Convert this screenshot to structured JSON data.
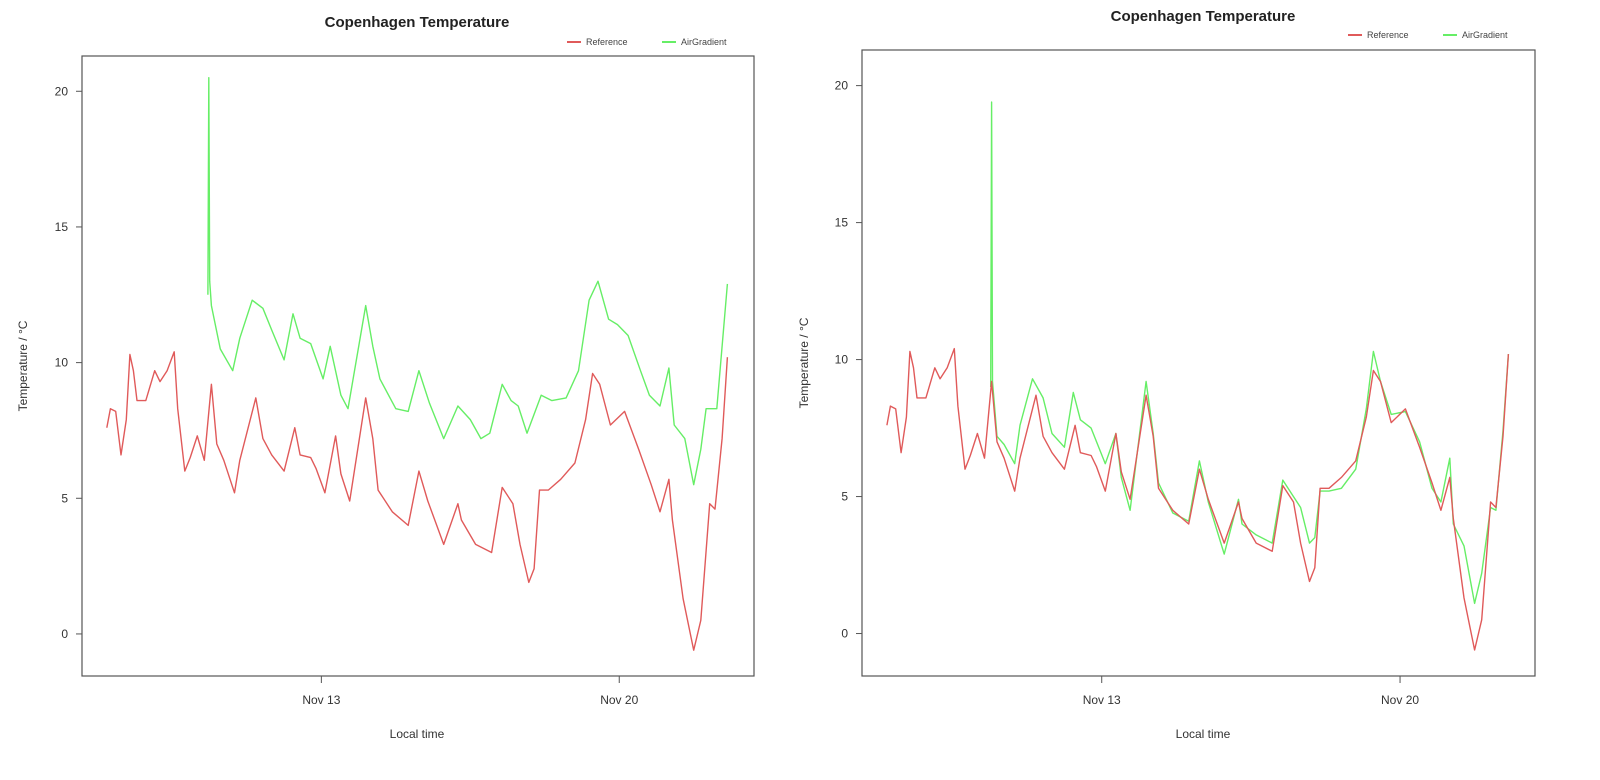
{
  "chart_data": [
    {
      "type": "line",
      "title": "Copenhagen Temperature",
      "xlabel": "Local time",
      "ylabel": "Temperature / °C",
      "xlim": [
        "Nov 7 09:00",
        "Nov 23 04:00"
      ],
      "ylim": [
        -1.55,
        21.3
      ],
      "xticks": [
        {
          "label": "Nov 13",
          "x": "Nov 13 00:00"
        },
        {
          "label": "Nov 20",
          "x": "Nov 20 00:00"
        }
      ],
      "yticks": [
        0,
        5,
        10,
        15,
        20
      ],
      "grid": false,
      "legend": "top-right",
      "series": [
        {
          "name": "Reference",
          "color": "#e05a5a",
          "points": [
            [
              "Nov 7 23:00",
              7.6
            ],
            [
              "Nov 8 01:00",
              8.3
            ],
            [
              "Nov 8 04:00",
              8.2
            ],
            [
              "Nov 8 07:00",
              6.6
            ],
            [
              "Nov 8 10:00",
              7.9
            ],
            [
              "Nov 8 12:00",
              10.3
            ],
            [
              "Nov 8 14:00",
              9.7
            ],
            [
              "Nov 8 16:00",
              8.6
            ],
            [
              "Nov 8 21:00",
              8.6
            ],
            [
              "Nov 9 02:00",
              9.7
            ],
            [
              "Nov 9 05:00",
              9.3
            ],
            [
              "Nov 9 09:00",
              9.7
            ],
            [
              "Nov 9 13:00",
              10.4
            ],
            [
              "Nov 9 15:00",
              8.3
            ],
            [
              "Nov 9 19:00",
              6.0
            ],
            [
              "Nov 9 22:00",
              6.5
            ],
            [
              "Nov 10 02:00",
              7.3
            ],
            [
              "Nov 10 06:00",
              6.4
            ],
            [
              "Nov 10 10:00",
              9.2
            ],
            [
              "Nov 10 13:00",
              7.0
            ],
            [
              "Nov 10 17:00",
              6.4
            ],
            [
              "Nov 10 23:00",
              5.2
            ],
            [
              "Nov 11 02:00",
              6.4
            ],
            [
              "Nov 11 11:00",
              8.7
            ],
            [
              "Nov 11 15:00",
              7.2
            ],
            [
              "Nov 11 20:00",
              6.6
            ],
            [
              "Nov 12 03:00",
              6.0
            ],
            [
              "Nov 12 09:00",
              7.6
            ],
            [
              "Nov 12 12:00",
              6.6
            ],
            [
              "Nov 12 18:00",
              6.5
            ],
            [
              "Nov 12 21:00",
              6.1
            ],
            [
              "Nov 13 02:00",
              5.2
            ],
            [
              "Nov 13 08:00",
              7.3
            ],
            [
              "Nov 13 11:00",
              5.9
            ],
            [
              "Nov 13 16:00",
              4.9
            ],
            [
              "Nov 14 01:00",
              8.7
            ],
            [
              "Nov 14 05:00",
              7.2
            ],
            [
              "Nov 14 08:00",
              5.3
            ],
            [
              "Nov 14 16:00",
              4.5
            ],
            [
              "Nov 15 01:00",
              4.0
            ],
            [
              "Nov 15 07:00",
              6.0
            ],
            [
              "Nov 15 12:00",
              4.9
            ],
            [
              "Nov 15 21:00",
              3.3
            ],
            [
              "Nov 16 05:00",
              4.8
            ],
            [
              "Nov 16 07:00",
              4.2
            ],
            [
              "Nov 16 15:00",
              3.3
            ],
            [
              "Nov 17 00:00",
              3.0
            ],
            [
              "Nov 17 06:00",
              5.4
            ],
            [
              "Nov 17 12:00",
              4.8
            ],
            [
              "Nov 17 16:00",
              3.3
            ],
            [
              "Nov 17 21:00",
              1.9
            ],
            [
              "Nov 18 00:00",
              2.4
            ],
            [
              "Nov 18 03:00",
              5.3
            ],
            [
              "Nov 18 08:00",
              5.3
            ],
            [
              "Nov 18 15:00",
              5.7
            ],
            [
              "Nov 18 23:00",
              6.3
            ],
            [
              "Nov 19 05:00",
              7.9
            ],
            [
              "Nov 19 09:00",
              9.6
            ],
            [
              "Nov 19 13:00",
              9.2
            ],
            [
              "Nov 19 19:00",
              7.7
            ],
            [
              "Nov 20 03:00",
              8.2
            ],
            [
              "Nov 20 11:00",
              6.8
            ],
            [
              "Nov 20 18:00",
              5.5
            ],
            [
              "Nov 20 23:00",
              4.5
            ],
            [
              "Nov 21 04:00",
              5.7
            ],
            [
              "Nov 21 06:00",
              4.2
            ],
            [
              "Nov 21 12:00",
              1.3
            ],
            [
              "Nov 21 18:00",
              -0.6
            ],
            [
              "Nov 21 22:00",
              0.5
            ],
            [
              "Nov 22 03:00",
              4.8
            ],
            [
              "Nov 22 06:00",
              4.6
            ],
            [
              "Nov 22 10:00",
              7.2
            ],
            [
              "Nov 22 13:00",
              10.2
            ]
          ]
        },
        {
          "name": "AirGradient",
          "color": "#66ee66",
          "points": [
            [
              "Nov 10 08:00",
              12.5
            ],
            [
              "Nov 10 08:30",
              20.5
            ],
            [
              "Nov 10 09:00",
              13.0
            ],
            [
              "Nov 10 10:00",
              12.1
            ],
            [
              "Nov 10 15:00",
              10.5
            ],
            [
              "Nov 10 22:00",
              9.7
            ],
            [
              "Nov 11 02:00",
              10.9
            ],
            [
              "Nov 11 09:00",
              12.3
            ],
            [
              "Nov 11 15:00",
              12.0
            ],
            [
              "Nov 11 20:00",
              11.2
            ],
            [
              "Nov 12 03:00",
              10.1
            ],
            [
              "Nov 12 08:00",
              11.8
            ],
            [
              "Nov 12 12:00",
              10.9
            ],
            [
              "Nov 12 18:00",
              10.7
            ],
            [
              "Nov 13 01:00",
              9.4
            ],
            [
              "Nov 13 05:00",
              10.6
            ],
            [
              "Nov 13 11:00",
              8.8
            ],
            [
              "Nov 13 15:00",
              8.3
            ],
            [
              "Nov 14 01:00",
              12.1
            ],
            [
              "Nov 14 05:00",
              10.6
            ],
            [
              "Nov 14 09:00",
              9.4
            ],
            [
              "Nov 14 18:00",
              8.3
            ],
            [
              "Nov 15 01:00",
              8.2
            ],
            [
              "Nov 15 07:00",
              9.7
            ],
            [
              "Nov 15 13:00",
              8.5
            ],
            [
              "Nov 15 21:00",
              7.2
            ],
            [
              "Nov 16 05:00",
              8.4
            ],
            [
              "Nov 16 12:00",
              7.9
            ],
            [
              "Nov 16 18:00",
              7.2
            ],
            [
              "Nov 16 23:00",
              7.4
            ],
            [
              "Nov 17 06:00",
              9.2
            ],
            [
              "Nov 17 11:00",
              8.6
            ],
            [
              "Nov 17 15:00",
              8.4
            ],
            [
              "Nov 17 20:00",
              7.4
            ],
            [
              "Nov 18 04:00",
              8.8
            ],
            [
              "Nov 18 10:00",
              8.6
            ],
            [
              "Nov 18 18:00",
              8.7
            ],
            [
              "Nov 19 01:00",
              9.7
            ],
            [
              "Nov 19 07:00",
              12.3
            ],
            [
              "Nov 19 12:00",
              13.0
            ],
            [
              "Nov 19 18:00",
              11.6
            ],
            [
              "Nov 19 23:00",
              11.4
            ],
            [
              "Nov 20 05:00",
              11.0
            ],
            [
              "Nov 20 12:00",
              9.7
            ],
            [
              "Nov 20 17:00",
              8.8
            ],
            [
              "Nov 20 23:00",
              8.4
            ],
            [
              "Nov 21 04:00",
              9.8
            ],
            [
              "Nov 21 07:00",
              7.7
            ],
            [
              "Nov 21 13:00",
              7.2
            ],
            [
              "Nov 21 18:00",
              5.5
            ],
            [
              "Nov 21 22:00",
              6.8
            ],
            [
              "Nov 22 01:00",
              8.3
            ],
            [
              "Nov 22 07:00",
              8.3
            ],
            [
              "Nov 22 13:00",
              12.9
            ]
          ]
        }
      ]
    },
    {
      "type": "line",
      "title": "Copenhagen Temperature",
      "xlabel": "Local time",
      "ylabel": "Temperature / °C",
      "xlim": [
        "Nov 7 09:00",
        "Nov 23 04:00"
      ],
      "ylim": [
        -1.55,
        21.3
      ],
      "xticks": [
        {
          "label": "Nov 13",
          "x": "Nov 13 00:00"
        },
        {
          "label": "Nov 20",
          "x": "Nov 20 00:00"
        }
      ],
      "yticks": [
        0,
        5,
        10,
        15,
        20
      ],
      "grid": false,
      "legend": "top-right",
      "series": [
        {
          "name": "Reference",
          "color": "#e05a5a",
          "points": "same-as-left"
        },
        {
          "name": "AirGradient",
          "color": "#66ee66",
          "points": [
            [
              "Nov 10 09:30",
              9.0
            ],
            [
              "Nov 10 10:00",
              19.4
            ],
            [
              "Nov 10 10:30",
              9.2
            ],
            [
              "Nov 10 13:00",
              7.2
            ],
            [
              "Nov 10 17:00",
              6.9
            ],
            [
              "Nov 10 23:00",
              6.2
            ],
            [
              "Nov 11 02:00",
              7.6
            ],
            [
              "Nov 11 09:00",
              9.3
            ],
            [
              "Nov 11 15:00",
              8.6
            ],
            [
              "Nov 11 20:00",
              7.3
            ],
            [
              "Nov 12 03:00",
              6.8
            ],
            [
              "Nov 12 08:00",
              8.8
            ],
            [
              "Nov 12 12:00",
              7.8
            ],
            [
              "Nov 12 18:00",
              7.5
            ],
            [
              "Nov 13 02:00",
              6.2
            ],
            [
              "Nov 13 08:00",
              7.3
            ],
            [
              "Nov 13 11:00",
              5.7
            ],
            [
              "Nov 13 16:00",
              4.5
            ],
            [
              "Nov 14 01:00",
              9.2
            ],
            [
              "Nov 14 05:00",
              7.3
            ],
            [
              "Nov 14 08:00",
              5.5
            ],
            [
              "Nov 14 16:00",
              4.4
            ],
            [
              "Nov 15 01:00",
              4.1
            ],
            [
              "Nov 15 07:00",
              6.3
            ],
            [
              "Nov 15 12:00",
              4.8
            ],
            [
              "Nov 15 21:00",
              2.9
            ],
            [
              "Nov 16 05:00",
              4.9
            ],
            [
              "Nov 16 07:00",
              4.0
            ],
            [
              "Nov 16 15:00",
              3.6
            ],
            [
              "Nov 17 00:00",
              3.3
            ],
            [
              "Nov 17 06:00",
              5.6
            ],
            [
              "Nov 17 12:00",
              5.0
            ],
            [
              "Nov 17 16:00",
              4.6
            ],
            [
              "Nov 17 21:00",
              3.3
            ],
            [
              "Nov 18 00:00",
              3.5
            ],
            [
              "Nov 18 03:00",
              5.2
            ],
            [
              "Nov 18 08:00",
              5.2
            ],
            [
              "Nov 18 15:00",
              5.3
            ],
            [
              "Nov 18 23:00",
              6.0
            ],
            [
              "Nov 19 05:00",
              8.2
            ],
            [
              "Nov 19 09:00",
              10.3
            ],
            [
              "Nov 19 13:00",
              9.2
            ],
            [
              "Nov 19 19:00",
              8.0
            ],
            [
              "Nov 20 03:00",
              8.1
            ],
            [
              "Nov 20 11:00",
              7.0
            ],
            [
              "Nov 20 18:00",
              5.3
            ],
            [
              "Nov 20 23:00",
              4.8
            ],
            [
              "Nov 21 04:00",
              6.4
            ],
            [
              "Nov 21 06:00",
              4.0
            ],
            [
              "Nov 21 12:00",
              3.2
            ],
            [
              "Nov 21 18:00",
              1.1
            ],
            [
              "Nov 21 22:00",
              2.2
            ],
            [
              "Nov 22 03:00",
              4.6
            ],
            [
              "Nov 22 06:00",
              4.5
            ],
            [
              "Nov 22 10:00",
              7.4
            ],
            [
              "Nov 22 13:00",
              10.2
            ]
          ]
        }
      ]
    }
  ]
}
